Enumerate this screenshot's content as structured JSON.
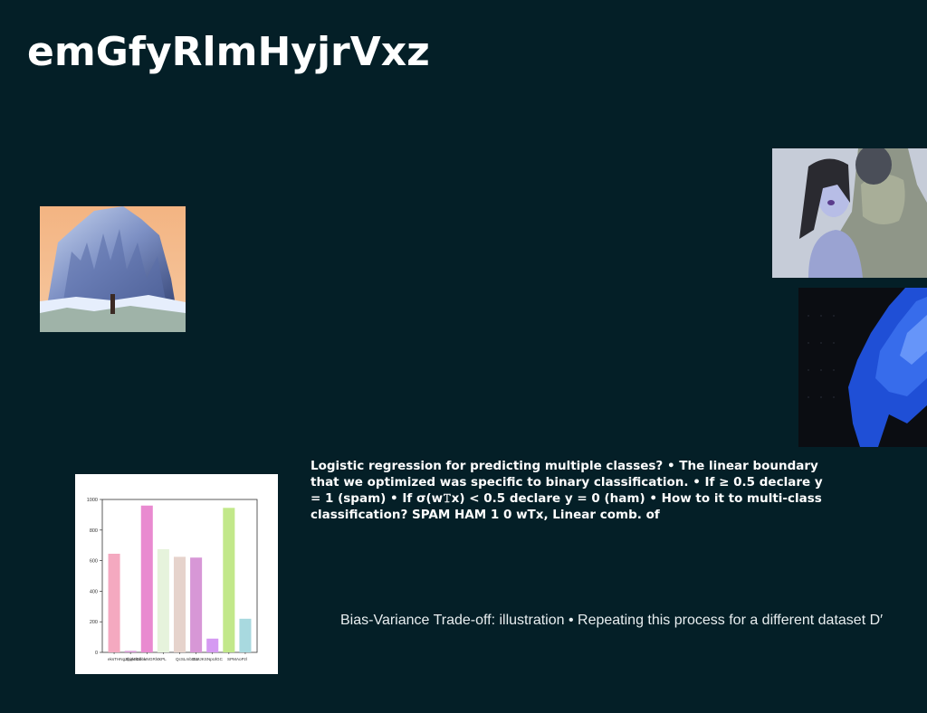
{
  "slide": {
    "title": "emGfyRlmHyjrVxz",
    "body_text": "Logistic regression for predicting multiple classes? • The linear boundary that we optimized was specific to binary classification. • If ≥ 0.5 declare y = 1 (spam) • If σ(w𝚃x) < 0.5 declare y = 0 (ham) • How to it to multi-class classification? SPAM HAM 1 0 wTx, Linear comb. of",
    "caption": "Bias-Variance Trade-off: illustration • Repeating this process for a different dataset D′"
  },
  "colors": {
    "background": "#041f27",
    "text": "#ffffff"
  },
  "images": [
    {
      "name": "canyon-photo",
      "description_icon": "landscape-photo"
    },
    {
      "name": "couple-photo",
      "description_icon": "portrait-photo"
    },
    {
      "name": "blue-texture-photo",
      "description_icon": "abstract-photo"
    }
  ],
  "chart_data": {
    "type": "bar",
    "categories": [
      "eksTHNgZbjABDbbk",
      "",
      "xpqk kol",
      "uNGRlm",
      "XPL",
      "QcSLmbDU",
      "GMJKSNpUlGC",
      "SPMAoPzl",
      ""
    ],
    "tick_labels": [
      "eksTHNgZbjABDbbk",
      "xpqk kol",
      "uNGRlm",
      "XPL",
      "QcSLmbDU",
      "GMJKSNpUlGC",
      "SPMAoPzl"
    ],
    "values": [
      645,
      10,
      960,
      675,
      625,
      620,
      90,
      945,
      220
    ],
    "colors": [
      "#f4a9c0",
      "#d9a0d8",
      "#e98ad0",
      "#e6f3dc",
      "#e6d3cc",
      "#d797d6",
      "#d59af2",
      "#c2e88a",
      "#a8d9df"
    ],
    "ylim": [
      0,
      1000
    ],
    "yticks": [
      0,
      200,
      400,
      600,
      800,
      1000
    ]
  }
}
